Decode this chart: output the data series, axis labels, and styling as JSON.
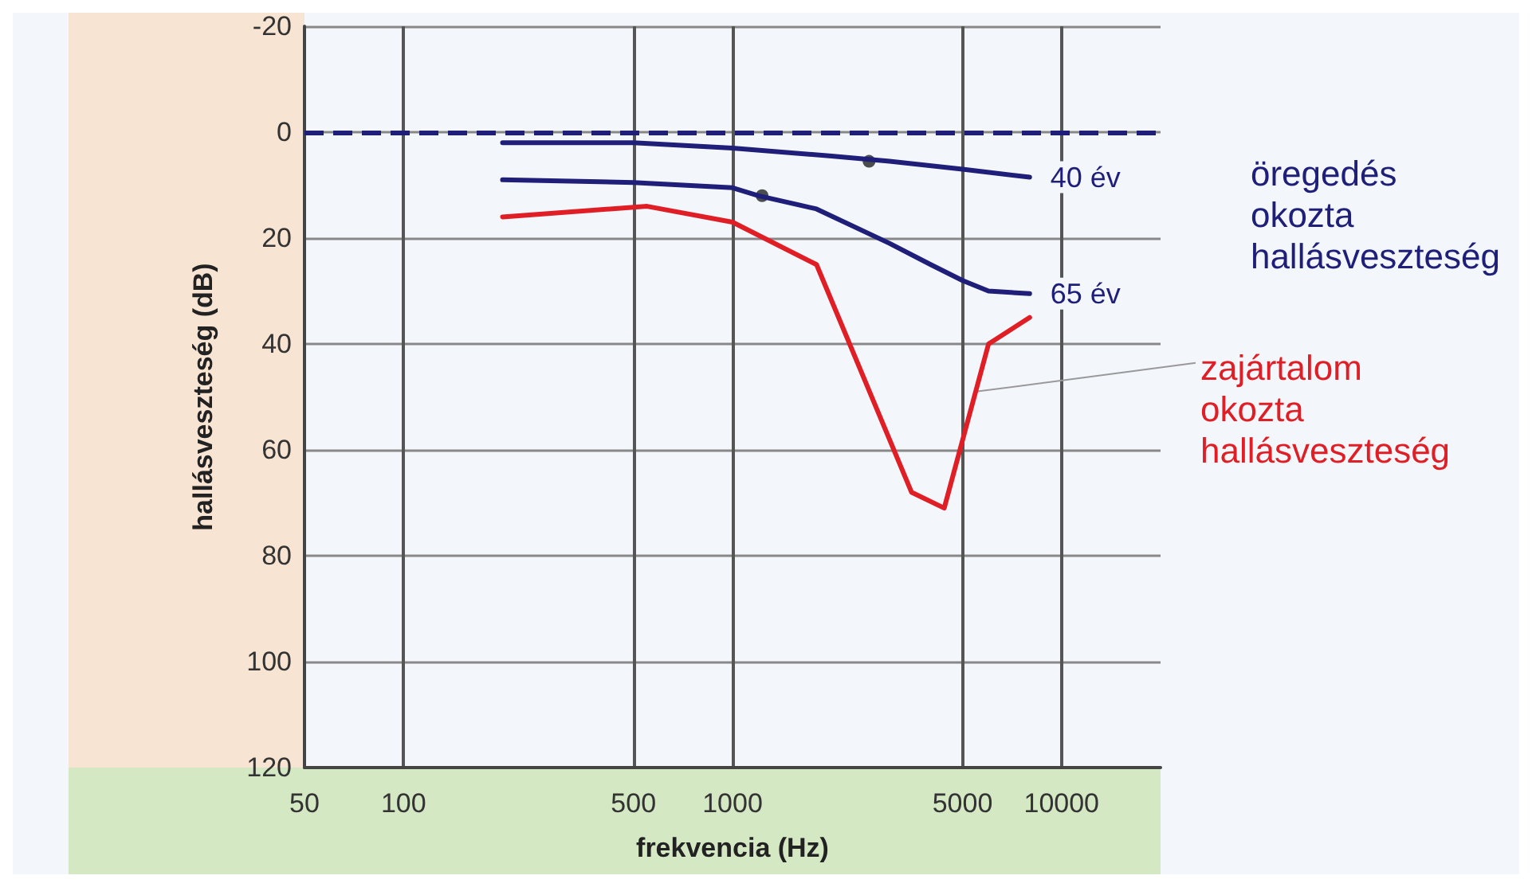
{
  "chart_data": {
    "type": "line",
    "xlabel": "frekvencia (Hz)",
    "ylabel": "hallásveszteség (dB)",
    "xlim": [
      50,
      20000
    ],
    "xticks": [
      50,
      100,
      500,
      1000,
      5000,
      10000
    ],
    "log": "x",
    "ylim": [
      120,
      -20
    ],
    "yticks": [
      -20,
      0,
      20,
      40,
      60,
      80,
      100,
      120
    ],
    "grid": true,
    "legend": false,
    "line_style": "solid",
    "marker": "none",
    "series": [
      {
        "name": "40 év",
        "color": "#1f1f7a",
        "x": [
          200,
          500,
          1000,
          2000,
          3000,
          5000,
          8000
        ],
        "values": [
          2,
          2,
          3,
          4.5,
          5.5,
          7,
          8.5
        ]
      },
      {
        "name": "65 év",
        "color": "#1f1f7a",
        "x": [
          200,
          500,
          1000,
          1200,
          1800,
          3000,
          4000,
          5000,
          6000,
          8000
        ],
        "values": [
          9,
          9.5,
          10.5,
          12,
          14.5,
          21,
          25,
          28,
          30,
          30.5
        ]
      },
      {
        "color": "#e01e26",
        "x": [
          200,
          550,
          1000,
          1800,
          3500,
          4400,
          6000,
          8000
        ],
        "values": [
          16,
          14,
          17,
          25,
          68,
          71,
          40,
          35
        ]
      },
      {
        "type": "scatter",
        "marker": "circle",
        "color": "#222222",
        "x": [
          2600,
          1230
        ],
        "values": [
          5.5,
          12
        ]
      }
    ],
    "ref_lines": [
      {
        "axis": "y",
        "value": 0,
        "color": "#1f1f7a",
        "line_style": "dashed"
      }
    ],
    "annotations": [
      "öregedés\nokozta\nhallásveszteség",
      {
        "text": "zajártalom\nokozta\nhallásveszteség",
        "x": 5500,
        "y": 49
      }
    ]
  }
}
